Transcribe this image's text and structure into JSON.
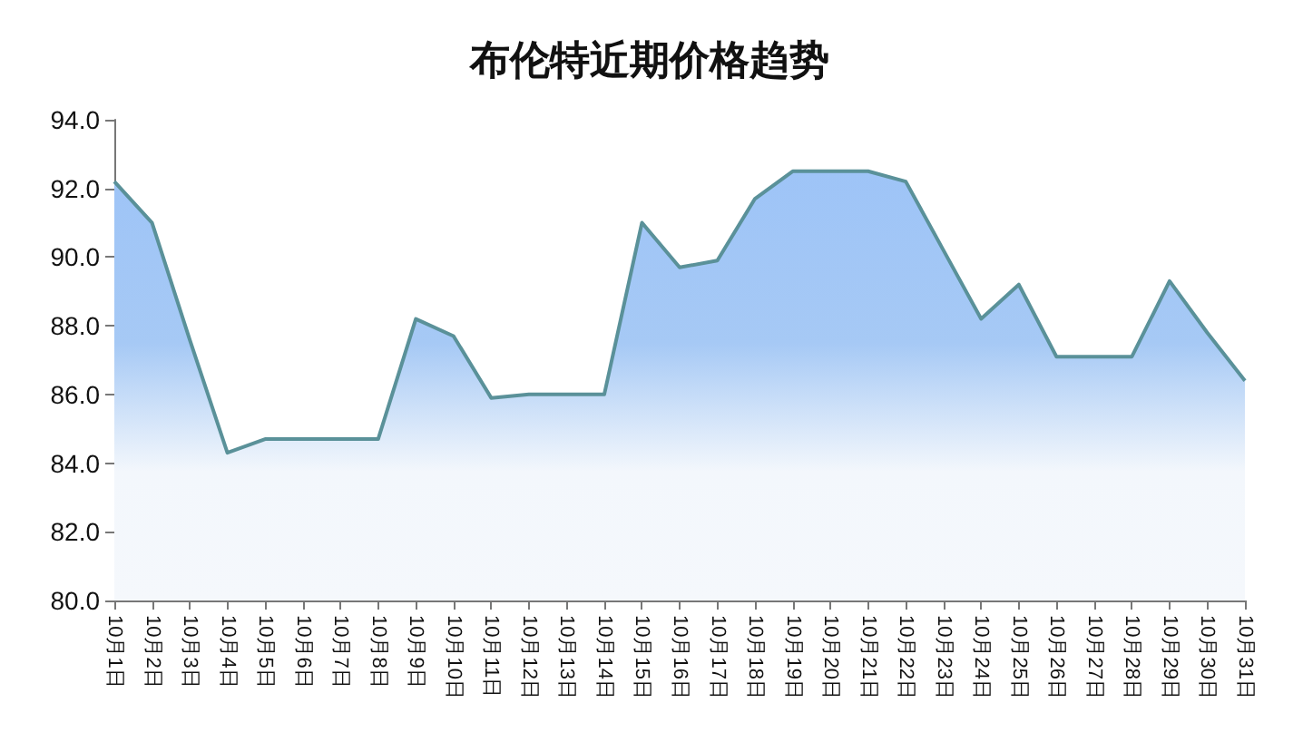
{
  "chart_data": {
    "type": "area",
    "title": "布伦特近期价格趋势",
    "categories": [
      "10月1日",
      "10月2日",
      "10月3日",
      "10月4日",
      "10月5日",
      "10月6日",
      "10月7日",
      "10月8日",
      "10月9日",
      "10月10日",
      "10月11日",
      "10月12日",
      "10月13日",
      "10月14日",
      "10月15日",
      "10月16日",
      "10月17日",
      "10月18日",
      "10月19日",
      "10月20日",
      "10月21日",
      "10月22日",
      "10月23日",
      "10月24日",
      "10月25日",
      "10月26日",
      "10月27日",
      "10月28日",
      "10月29日",
      "10月30日",
      "10月31日"
    ],
    "series": [
      {
        "color": "#5a9199",
        "values": [
          92.2,
          91.0,
          87.6,
          84.3,
          84.7,
          84.7,
          84.7,
          84.7,
          88.2,
          87.7,
          85.9,
          86.0,
          86.0,
          86.0,
          91.0,
          89.7,
          89.9,
          91.7,
          92.5,
          92.5,
          92.5,
          92.2,
          90.2,
          88.2,
          89.2,
          87.1,
          87.1,
          87.1,
          89.3,
          87.8,
          86.4
        ]
      }
    ],
    "ylim": [
      80,
      94
    ],
    "yticks": [
      {
        "value": 80,
        "label": "80.0"
      },
      {
        "value": 82,
        "label": "82.0"
      },
      {
        "value": 84,
        "label": "84.0"
      },
      {
        "value": 86,
        "label": "86.0"
      },
      {
        "value": 88,
        "label": "88.0"
      },
      {
        "value": 90,
        "label": "90.0"
      },
      {
        "value": 92,
        "label": "92.0"
      },
      {
        "value": 94,
        "label": "94.0"
      }
    ],
    "marker": "none",
    "line_style": "solid"
  }
}
